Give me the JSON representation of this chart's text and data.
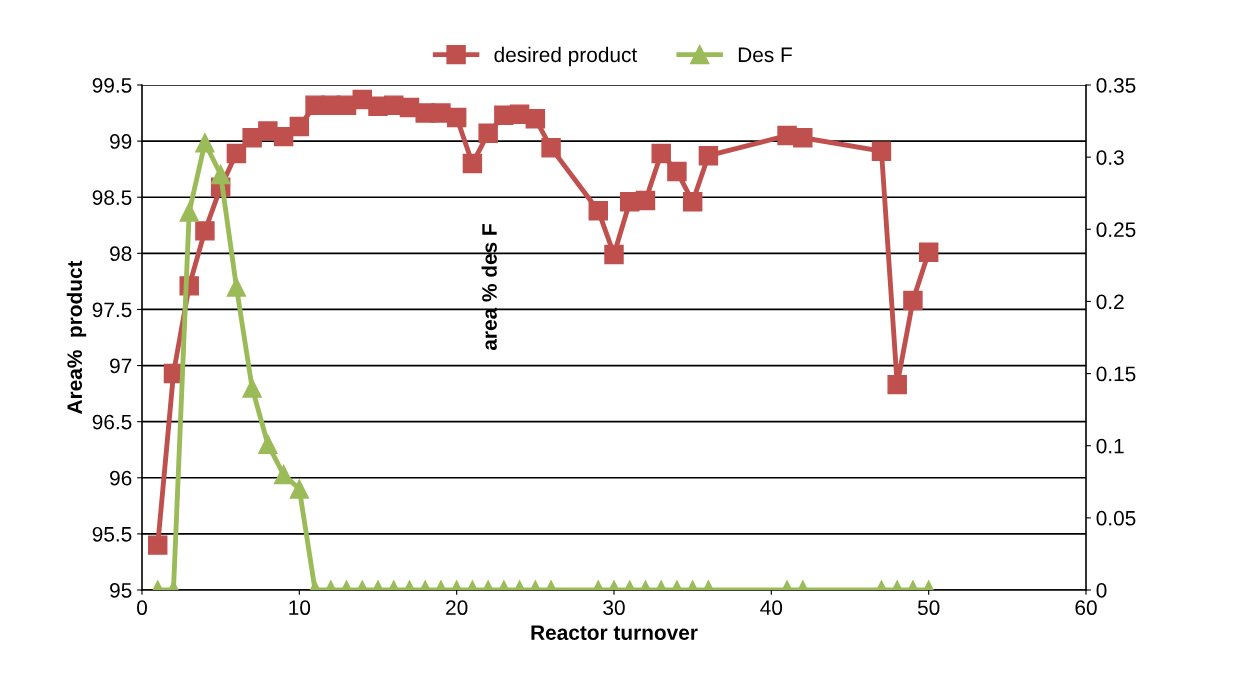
{
  "chart_data": {
    "type": "line",
    "xlabel": "Reactor turnover",
    "ylabel": "Area%  product",
    "annotations": [
      "area % des F"
    ],
    "x": [
      1,
      2,
      3,
      4,
      5,
      6,
      7,
      8,
      9,
      10,
      11,
      12,
      13,
      14,
      15,
      16,
      17,
      18,
      19,
      20,
      21,
      22,
      23,
      24,
      25,
      26,
      29,
      30,
      31,
      32,
      33,
      34,
      35,
      36,
      41,
      42,
      47,
      48,
      49,
      50
    ],
    "series": [
      {
        "name": "desired product",
        "color": "#c0504d",
        "marker": "square",
        "values": [
          95.4,
          96.93,
          97.71,
          98.2,
          98.59,
          98.89,
          99.03,
          99.09,
          99.04,
          99.13,
          99.32,
          99.32,
          99.32,
          99.37,
          99.31,
          99.32,
          99.3,
          99.25,
          99.25,
          99.21,
          98.8,
          99.07,
          99.23,
          99.24,
          99.2,
          98.94,
          98.38,
          97.99,
          98.46,
          98.47,
          98.89,
          98.73,
          98.46,
          98.87,
          99.05,
          99.03,
          98.91,
          96.83,
          97.58,
          98.01
        ]
      },
      {
        "name": "Des F",
        "color": "#9bbb59",
        "marker": "triangle",
        "axis": "y2",
        "values": [
          0,
          0,
          0.262,
          0.31,
          0.288,
          0.21,
          0.14,
          0.101,
          0.08,
          0.07,
          0,
          0,
          0,
          0,
          0,
          0,
          0,
          0,
          0,
          0,
          0,
          0,
          0,
          0,
          0,
          0,
          0,
          0,
          0,
          0,
          0,
          0,
          0,
          0,
          0,
          0,
          0,
          0,
          0,
          0
        ]
      }
    ],
    "xlim": [
      0,
      60
    ],
    "xticks": [
      0,
      10,
      20,
      30,
      40,
      50,
      60
    ],
    "ylim": [
      95,
      99.5
    ],
    "yticks": [
      95,
      95.5,
      96,
      96.5,
      97,
      97.5,
      98,
      98.5,
      99,
      99.5
    ],
    "y2lim": [
      0,
      0.35
    ],
    "y2ticks": [
      0,
      0.05,
      0.1,
      0.15,
      0.2,
      0.25,
      0.3,
      0.35
    ],
    "grid": "y",
    "legend": "top",
    "line_style": "solid"
  }
}
